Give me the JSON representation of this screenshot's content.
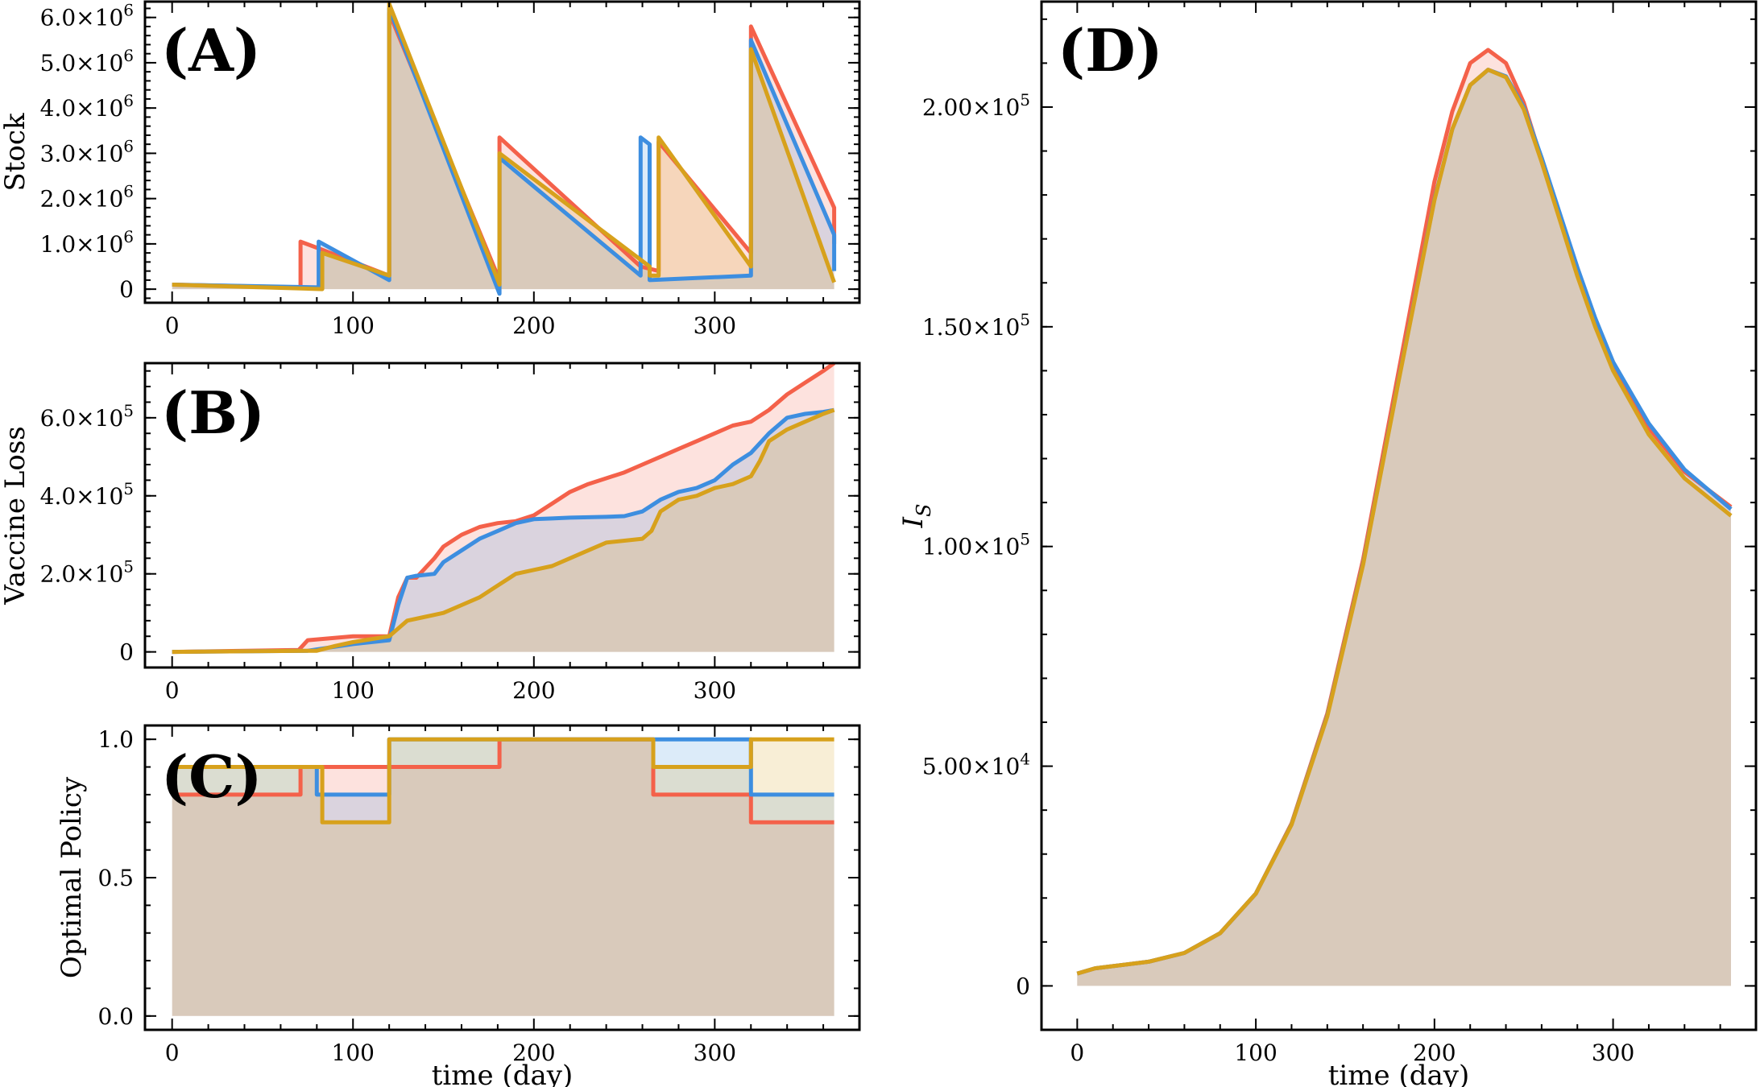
{
  "colors": {
    "scenario_1": "#f4614a",
    "scenario_2": "#3d8ee0",
    "scenario_3": "#d7a11c"
  },
  "chart_data": [
    {
      "type": "area",
      "panel": "A",
      "panel_label": "(A)",
      "title": "",
      "xlabel": "",
      "ylabel": "Stock",
      "xlim": [
        -15,
        380
      ],
      "ylim": [
        -300000,
        6350000
      ],
      "xticks": [
        0,
        100,
        200,
        300
      ],
      "xtick_labels": [
        "0",
        "100",
        "200",
        "300"
      ],
      "yticks": [
        0,
        1000000,
        2000000,
        3000000,
        4000000,
        5000000,
        6000000
      ],
      "ytick_labels": [
        {
          "mantissa": "0",
          "exp": ""
        },
        {
          "mantissa": "1.0×10",
          "exp": "6"
        },
        {
          "mantissa": "2.0×10",
          "exp": "6"
        },
        {
          "mantissa": "3.0×10",
          "exp": "6"
        },
        {
          "mantissa": "4.0×10",
          "exp": "6"
        },
        {
          "mantissa": "5.0×10",
          "exp": "6"
        },
        {
          "mantissa": "6.0×10",
          "exp": "6"
        }
      ],
      "series": [
        {
          "name": "scenario_1",
          "color": "#f4614a",
          "x": [
            0,
            71,
            71,
            81,
            81,
            120,
            120,
            181,
            181,
            259,
            259,
            269,
            269,
            320,
            320,
            366,
            366
          ],
          "y": [
            100000,
            40000,
            1050000,
            900000,
            900000,
            300000,
            6100000,
            200000,
            3350000,
            500000,
            500000,
            400000,
            3250000,
            800000,
            5800000,
            1800000,
            1000000
          ]
        },
        {
          "name": "scenario_2",
          "color": "#3d8ee0",
          "x": [
            0,
            81,
            81,
            120,
            120,
            181,
            181,
            259,
            259,
            264,
            264,
            320,
            320,
            366,
            366
          ],
          "y": [
            100000,
            40000,
            1050000,
            200000,
            6200000,
            -100000,
            2900000,
            300000,
            3350000,
            3200000,
            200000,
            300000,
            5500000,
            1200000,
            400000
          ]
        },
        {
          "name": "scenario_3",
          "color": "#d7a11c",
          "x": [
            0,
            83,
            83,
            120,
            120,
            181,
            181,
            264,
            264,
            269,
            269,
            320,
            320,
            366
          ],
          "y": [
            100000,
            0,
            800000,
            300000,
            6300000,
            100000,
            3000000,
            500000,
            300000,
            300000,
            3350000,
            500000,
            5300000,
            150000
          ]
        }
      ]
    },
    {
      "type": "area",
      "panel": "B",
      "panel_label": "(B)",
      "title": "",
      "xlabel": "",
      "ylabel": "Vaccine Loss",
      "xlim": [
        -15,
        380
      ],
      "ylim": [
        -40000,
        740000
      ],
      "xticks": [
        0,
        100,
        200,
        300
      ],
      "xtick_labels": [
        "0",
        "100",
        "200",
        "300"
      ],
      "yticks": [
        0,
        200000,
        400000,
        600000
      ],
      "ytick_labels": [
        {
          "mantissa": "0",
          "exp": ""
        },
        {
          "mantissa": "2.0×10",
          "exp": "5"
        },
        {
          "mantissa": "4.0×10",
          "exp": "5"
        },
        {
          "mantissa": "6.0×10",
          "exp": "5"
        }
      ],
      "series": [
        {
          "name": "scenario_1",
          "color": "#f4614a",
          "x": [
            0,
            70,
            75,
            100,
            120,
            125,
            130,
            135,
            145,
            150,
            160,
            170,
            180,
            190,
            200,
            210,
            220,
            230,
            240,
            250,
            260,
            270,
            280,
            290,
            300,
            310,
            320,
            330,
            340,
            350,
            360,
            366
          ],
          "y": [
            0,
            5000,
            30000,
            40000,
            40000,
            140000,
            190000,
            190000,
            240000,
            270000,
            300000,
            320000,
            330000,
            335000,
            350000,
            380000,
            410000,
            430000,
            445000,
            460000,
            480000,
            500000,
            520000,
            540000,
            560000,
            580000,
            590000,
            620000,
            660000,
            690000,
            720000,
            740000
          ]
        },
        {
          "name": "scenario_2",
          "color": "#3d8ee0",
          "x": [
            0,
            75,
            85,
            100,
            120,
            125,
            130,
            135,
            145,
            150,
            160,
            170,
            180,
            190,
            200,
            210,
            220,
            230,
            240,
            250,
            260,
            270,
            280,
            290,
            300,
            310,
            320,
            330,
            340,
            350,
            360,
            366
          ],
          "y": [
            0,
            3000,
            10000,
            20000,
            30000,
            120000,
            190000,
            195000,
            200000,
            230000,
            260000,
            290000,
            310000,
            330000,
            340000,
            342000,
            344000,
            345000,
            346000,
            348000,
            360000,
            390000,
            410000,
            420000,
            440000,
            480000,
            510000,
            560000,
            600000,
            610000,
            615000,
            620000
          ]
        },
        {
          "name": "scenario_3",
          "color": "#d7a11c",
          "x": [
            0,
            80,
            90,
            100,
            120,
            125,
            130,
            140,
            150,
            160,
            170,
            180,
            190,
            200,
            210,
            220,
            230,
            240,
            250,
            260,
            265,
            270,
            280,
            290,
            300,
            310,
            320,
            325,
            330,
            340,
            350,
            360,
            366
          ],
          "y": [
            0,
            3000,
            15000,
            25000,
            40000,
            60000,
            80000,
            90000,
            100000,
            120000,
            140000,
            170000,
            200000,
            210000,
            220000,
            240000,
            260000,
            280000,
            285000,
            290000,
            310000,
            360000,
            390000,
            400000,
            420000,
            430000,
            450000,
            490000,
            540000,
            570000,
            590000,
            610000,
            620000
          ]
        }
      ]
    },
    {
      "type": "area",
      "panel": "C",
      "panel_label": "(C)",
      "title": "",
      "xlabel": "time (day)",
      "ylabel": "Optimal Policy",
      "xlim": [
        -15,
        380
      ],
      "ylim": [
        -0.05,
        1.05
      ],
      "xticks": [
        0,
        100,
        200,
        300
      ],
      "xtick_labels": [
        "0",
        "100",
        "200",
        "300"
      ],
      "yticks": [
        0.0,
        0.5,
        1.0
      ],
      "ytick_labels": [
        {
          "mantissa": "0.0",
          "exp": ""
        },
        {
          "mantissa": "0.5",
          "exp": ""
        },
        {
          "mantissa": "1.0",
          "exp": ""
        }
      ],
      "series": [
        {
          "name": "scenario_1",
          "color": "#f4614a",
          "x": [
            0,
            71,
            71,
            120,
            120,
            181,
            181,
            266,
            266,
            320,
            320,
            366
          ],
          "y": [
            0.8,
            0.8,
            0.9,
            0.9,
            0.9,
            0.9,
            1.0,
            1.0,
            0.8,
            0.8,
            0.7,
            0.7
          ]
        },
        {
          "name": "scenario_2",
          "color": "#3d8ee0",
          "x": [
            0,
            80,
            80,
            120,
            120,
            266,
            266,
            320,
            320,
            366
          ],
          "y": [
            0.9,
            0.9,
            0.8,
            0.8,
            1.0,
            1.0,
            1.0,
            1.0,
            0.8,
            0.8
          ]
        },
        {
          "name": "scenario_3",
          "color": "#d7a11c",
          "x": [
            0,
            83,
            83,
            120,
            120,
            266,
            266,
            320,
            320,
            366
          ],
          "y": [
            0.9,
            0.9,
            0.7,
            0.7,
            1.0,
            1.0,
            0.9,
            0.9,
            1.0,
            1.0
          ]
        }
      ]
    },
    {
      "type": "area",
      "panel": "D",
      "panel_label": "(D)",
      "title": "",
      "xlabel": "time (day)",
      "ylabel": "I",
      "ylabel_subscript": "S",
      "xlim": [
        -20,
        380
      ],
      "ylim": [
        -10000,
        224000
      ],
      "xticks": [
        0,
        100,
        200,
        300
      ],
      "xtick_labels": [
        "0",
        "100",
        "200",
        "300"
      ],
      "yticks": [
        0,
        50000,
        100000,
        150000,
        200000
      ],
      "ytick_labels": [
        {
          "mantissa": "0",
          "exp": ""
        },
        {
          "mantissa": "5.00×10",
          "exp": "4"
        },
        {
          "mantissa": "1.00×10",
          "exp": "5"
        },
        {
          "mantissa": "1.50×10",
          "exp": "5"
        },
        {
          "mantissa": "2.00×10",
          "exp": "5"
        }
      ],
      "series": [
        {
          "name": "scenario_1",
          "color": "#f4614a",
          "x": [
            0,
            10,
            20,
            40,
            60,
            80,
            100,
            120,
            140,
            160,
            180,
            200,
            210,
            220,
            230,
            240,
            250,
            260,
            270,
            280,
            290,
            300,
            320,
            340,
            366
          ],
          "y": [
            2800,
            4000,
            4500,
            5500,
            7500,
            12000,
            21000,
            37000,
            62000,
            97000,
            140000,
            183000,
            199000,
            210000,
            213000,
            210000,
            201000,
            188000,
            175000,
            162000,
            151000,
            141000,
            127000,
            117000,
            109000
          ]
        },
        {
          "name": "scenario_2",
          "color": "#3d8ee0",
          "x": [
            0,
            10,
            20,
            40,
            60,
            80,
            100,
            120,
            140,
            160,
            180,
            200,
            210,
            220,
            230,
            240,
            250,
            260,
            270,
            280,
            290,
            300,
            320,
            340,
            366
          ],
          "y": [
            2800,
            4000,
            4500,
            5500,
            7500,
            12000,
            21000,
            36800,
            61500,
            96000,
            138000,
            179000,
            195000,
            205000,
            208500,
            207000,
            200000,
            188500,
            176000,
            163500,
            152000,
            142000,
            128000,
            117500,
            108500
          ]
        },
        {
          "name": "scenario_3",
          "color": "#d7a11c",
          "x": [
            0,
            10,
            20,
            40,
            60,
            80,
            100,
            120,
            140,
            160,
            180,
            200,
            210,
            220,
            230,
            240,
            250,
            260,
            270,
            280,
            290,
            300,
            320,
            340,
            366
          ],
          "y": [
            2800,
            4000,
            4500,
            5500,
            7500,
            12000,
            21000,
            36700,
            61300,
            95800,
            137800,
            178800,
            195000,
            205000,
            208500,
            206800,
            199500,
            187500,
            174500,
            161500,
            150000,
            140000,
            125500,
            115500,
            107000
          ]
        }
      ]
    }
  ]
}
